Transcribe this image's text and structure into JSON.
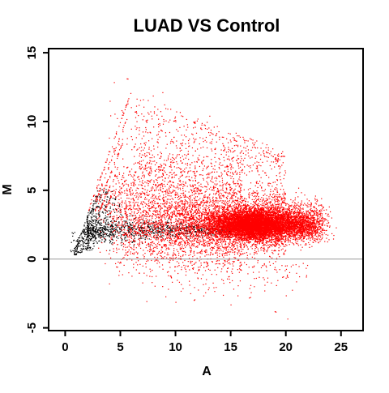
{
  "chart_data": {
    "type": "scatter",
    "title": "LUAD VS Control",
    "xlabel": "A",
    "ylabel": "M",
    "xlim": [
      -1.5,
      27
    ],
    "ylim": [
      -5.2,
      15.3
    ],
    "x_ticks": [
      0,
      5,
      10,
      15,
      20,
      25
    ],
    "y_ticks": [
      -5,
      0,
      5,
      10,
      15
    ],
    "grid": false,
    "legend": "none",
    "reference_line": {
      "y": 0,
      "color": "#999999"
    },
    "series": [
      {
        "color": "#000000",
        "description_points": [
          [
            1.0,
            1.1
          ],
          [
            1.5,
            1.6
          ],
          [
            2.0,
            2.2
          ],
          [
            2.5,
            2.6
          ],
          [
            3.0,
            2.0
          ],
          [
            3.5,
            2.3
          ],
          [
            4.0,
            1.9
          ],
          [
            4.5,
            2.0
          ],
          [
            5.0,
            2.1
          ],
          [
            6.0,
            1.9
          ],
          [
            7.0,
            2.1
          ],
          [
            8.0,
            2.0
          ],
          [
            9.0,
            2.2
          ],
          [
            10.0,
            2.4
          ],
          [
            12.0,
            2.4
          ],
          [
            14.0,
            2.3
          ]
        ]
      },
      {
        "color": "#ff0000",
        "description_points": [
          [
            5.0,
            4.5
          ],
          [
            6.0,
            6.5
          ],
          [
            8.0,
            7.5
          ],
          [
            10.0,
            3.0
          ],
          [
            12.0,
            5.0
          ],
          [
            13.0,
            2.5
          ],
          [
            15.0,
            2.0
          ],
          [
            16.0,
            2.8
          ],
          [
            17.0,
            2.5
          ],
          [
            18.0,
            2.4
          ],
          [
            19.0,
            2.2
          ],
          [
            20.0,
            2.5
          ],
          [
            22.0,
            2.3
          ]
        ]
      }
    ]
  }
}
